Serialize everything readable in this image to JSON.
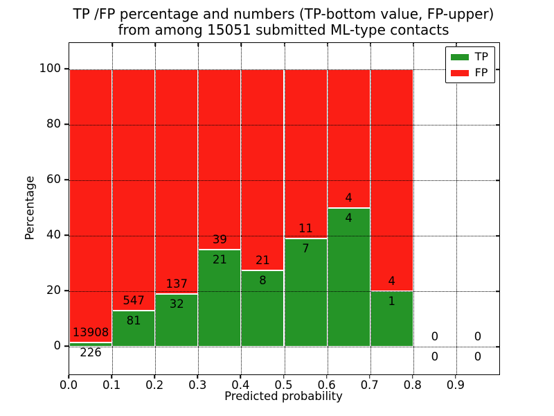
{
  "chart_data": {
    "type": "bar",
    "variant": "stacked-percentage-histogram",
    "title_line1": "TP /FP percentage and numbers (TP-bottom value, FP-upper)",
    "title_line2": "from among 15051 submitted ML-type contacts",
    "total_contacts": 15051,
    "xlabel": "Predicted probability",
    "ylabel": "Percentage",
    "xlim": [
      0.0,
      1.0
    ],
    "ylim": [
      -10,
      110
    ],
    "bar_total_height_percent": 100,
    "xtick_labels": [
      "0.0",
      "0.1",
      "0.2",
      "0.3",
      "0.4",
      "0.5",
      "0.6",
      "0.7",
      "0.8",
      "0.9"
    ],
    "ytick_values": [
      0,
      20,
      40,
      60,
      80,
      100
    ],
    "bin_edges": [
      0.0,
      0.1,
      0.2,
      0.3,
      0.4,
      0.5,
      0.6,
      0.7,
      0.8,
      0.9,
      1.0
    ],
    "series": [
      {
        "name": "TP",
        "color": "#259427",
        "counts": [
          226,
          81,
          32,
          21,
          8,
          7,
          4,
          1,
          0,
          0
        ]
      },
      {
        "name": "FP",
        "color": "#fb1e15",
        "counts": [
          13908,
          547,
          137,
          39,
          21,
          11,
          4,
          4,
          0,
          0
        ]
      }
    ],
    "tp_percent_of_bin": [
      1.6,
      12.9,
      18.93,
      35.0,
      27.59,
      38.89,
      50.0,
      20.0,
      0,
      0
    ],
    "annotation_note": "FP count printed above TP/FP boundary, TP count below it",
    "grid": {
      "style": "dotted",
      "color": "#000000",
      "drawn_on_top": true
    },
    "legend": {
      "position": "upper-right",
      "entries": [
        {
          "label": "TP",
          "color": "#259427"
        },
        {
          "label": "FP",
          "color": "#fb1e15"
        }
      ]
    }
  }
}
